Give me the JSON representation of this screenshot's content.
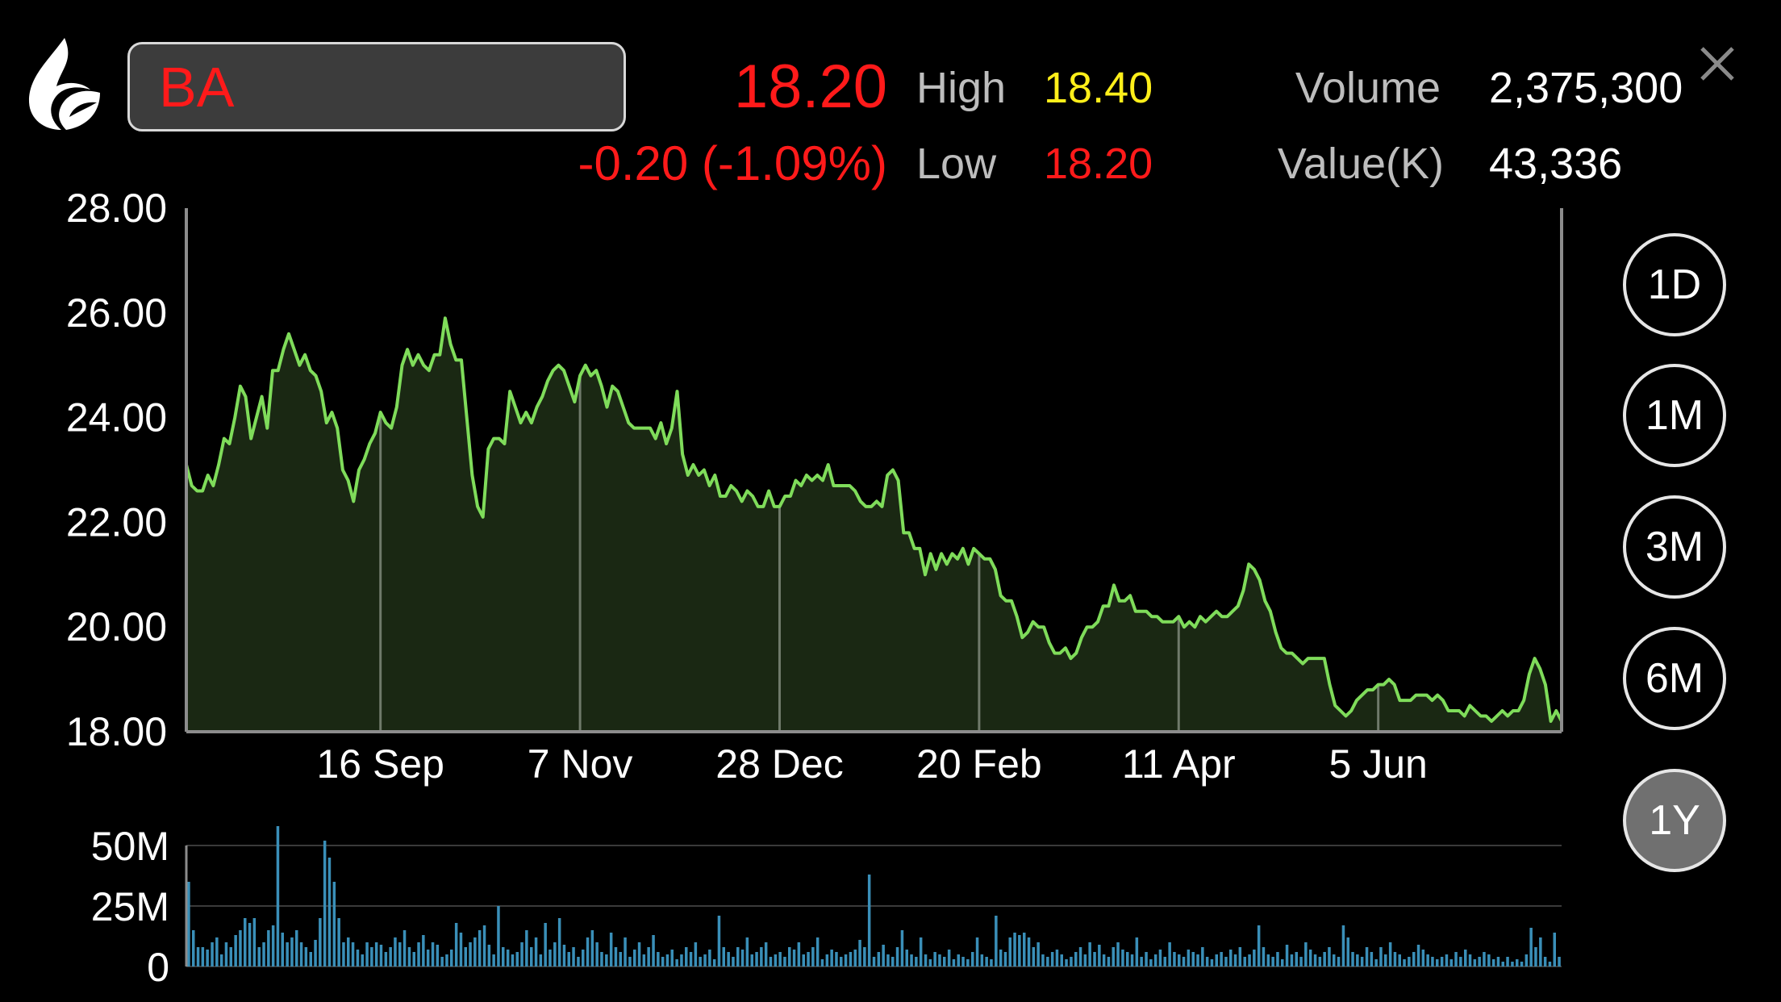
{
  "header": {
    "symbol": "BA",
    "last_price": "18.20",
    "change": "-0.20 (-1.09%)",
    "high_label": "High",
    "high_value": "18.40",
    "low_label": "Low",
    "low_value": "18.20",
    "volume_label": "Volume",
    "volume_value": "2,375,300",
    "value_label": "Value(K)",
    "value_value": "43,336"
  },
  "icons": {
    "logo": "flame-logo-icon",
    "close": "close-icon"
  },
  "colors": {
    "price_down": "#ff1a1a",
    "high": "#ffef1a",
    "line": "#7fdc5a",
    "volume_bar": "#3a8fb8"
  },
  "range_buttons": [
    {
      "label": "1D",
      "active": false
    },
    {
      "label": "1M",
      "active": false
    },
    {
      "label": "3M",
      "active": false
    },
    {
      "label": "6M",
      "active": false
    },
    {
      "label": "1Y",
      "active": true
    }
  ],
  "chart_data": [
    {
      "type": "area",
      "ylim": [
        18,
        28
      ],
      "y_ticks": [
        "28.00",
        "26.00",
        "24.00",
        "22.00",
        "20.00",
        "18.00"
      ],
      "x_tick_labels": [
        "16 Sep",
        "7 Nov",
        "28 Dec",
        "20 Feb",
        "11 Apr",
        "5 Jun"
      ],
      "x_tick_index": [
        36,
        73,
        110,
        147,
        184,
        221
      ],
      "grid": "vertical lines at date ticks",
      "values": [
        23.1,
        22.7,
        22.6,
        22.6,
        22.9,
        22.7,
        23.1,
        23.6,
        23.5,
        24.0,
        24.6,
        24.4,
        23.6,
        24.0,
        24.4,
        23.8,
        24.9,
        24.9,
        25.3,
        25.6,
        25.3,
        25.0,
        25.2,
        24.9,
        24.8,
        24.5,
        23.9,
        24.1,
        23.8,
        23.0,
        22.8,
        22.4,
        23.0,
        23.2,
        23.5,
        23.7,
        24.1,
        23.9,
        23.8,
        24.2,
        25.0,
        25.3,
        25.0,
        25.2,
        25.0,
        24.9,
        25.2,
        25.2,
        25.9,
        25.4,
        25.1,
        25.1,
        24.0,
        22.9,
        22.3,
        22.1,
        23.4,
        23.6,
        23.6,
        23.5,
        24.5,
        24.2,
        23.9,
        24.1,
        23.9,
        24.2,
        24.4,
        24.7,
        24.9,
        25.0,
        24.9,
        24.6,
        24.3,
        24.8,
        25.0,
        24.8,
        24.9,
        24.6,
        24.2,
        24.6,
        24.5,
        24.2,
        23.9,
        23.8,
        23.8,
        23.8,
        23.8,
        23.6,
        23.9,
        23.5,
        23.8,
        24.5,
        23.3,
        22.9,
        23.1,
        22.9,
        23.0,
        22.7,
        22.9,
        22.5,
        22.5,
        22.7,
        22.6,
        22.4,
        22.6,
        22.5,
        22.3,
        22.3,
        22.6,
        22.3,
        22.3,
        22.5,
        22.5,
        22.8,
        22.7,
        22.9,
        22.8,
        22.9,
        22.8,
        23.1,
        22.7,
        22.7,
        22.7,
        22.7,
        22.6,
        22.4,
        22.3,
        22.3,
        22.4,
        22.3,
        22.9,
        23.0,
        22.8,
        21.8,
        21.8,
        21.5,
        21.5,
        21.0,
        21.4,
        21.1,
        21.4,
        21.2,
        21.4,
        21.3,
        21.5,
        21.2,
        21.5,
        21.4,
        21.3,
        21.3,
        21.1,
        20.6,
        20.5,
        20.5,
        20.2,
        19.8,
        19.9,
        20.1,
        20.0,
        20.0,
        19.7,
        19.5,
        19.5,
        19.6,
        19.4,
        19.5,
        19.8,
        20.0,
        20.0,
        20.1,
        20.4,
        20.4,
        20.8,
        20.5,
        20.5,
        20.6,
        20.3,
        20.3,
        20.3,
        20.2,
        20.2,
        20.1,
        20.1,
        20.1,
        20.2,
        20.0,
        20.1,
        20.0,
        20.2,
        20.1,
        20.2,
        20.3,
        20.2,
        20.2,
        20.3,
        20.4,
        20.7,
        21.2,
        21.1,
        20.9,
        20.5,
        20.3,
        19.9,
        19.6,
        19.5,
        19.5,
        19.4,
        19.3,
        19.4,
        19.4,
        19.4,
        19.4,
        18.9,
        18.5,
        18.4,
        18.3,
        18.4,
        18.6,
        18.7,
        18.8,
        18.8,
        18.9,
        18.9,
        19.0,
        18.9,
        18.6,
        18.6,
        18.6,
        18.7,
        18.7,
        18.7,
        18.6,
        18.7,
        18.6,
        18.4,
        18.4,
        18.4,
        18.3,
        18.5,
        18.4,
        18.3,
        18.3,
        18.2,
        18.3,
        18.4,
        18.3,
        18.4,
        18.4,
        18.6,
        19.1,
        19.4,
        19.2,
        18.9,
        18.2,
        18.4,
        18.2
      ]
    },
    {
      "type": "bar",
      "ylim": [
        0,
        60
      ],
      "y_ticks": [
        "50M",
        "25M",
        "0"
      ],
      "ylabel_unit": "M",
      "values": [
        35,
        15,
        8,
        8,
        7,
        10,
        12,
        5,
        10,
        8,
        13,
        15,
        20,
        18,
        20,
        8,
        10,
        15,
        17,
        58,
        14,
        10,
        12,
        15,
        10,
        8,
        6,
        11,
        20,
        52,
        45,
        35,
        20,
        10,
        12,
        10,
        7,
        5,
        10,
        8,
        10,
        9,
        6,
        8,
        12,
        10,
        15,
        8,
        6,
        10,
        13,
        7,
        10,
        9,
        4,
        5,
        7,
        18,
        14,
        8,
        10,
        12,
        15,
        17,
        9,
        5,
        25,
        8,
        7,
        5,
        6,
        10,
        15,
        8,
        12,
        5,
        18,
        7,
        10,
        20,
        9,
        6,
        8,
        4,
        7,
        12,
        15,
        10,
        6,
        5,
        14,
        8,
        6,
        12,
        4,
        7,
        10,
        5,
        8,
        13,
        6,
        4,
        5,
        7,
        3,
        5,
        8,
        6,
        10,
        4,
        5,
        7,
        3,
        21,
        8,
        6,
        4,
        8,
        7,
        12,
        5,
        6,
        8,
        10,
        4,
        5,
        6,
        4,
        8,
        7,
        10,
        5,
        6,
        8,
        12,
        3,
        5,
        7,
        6,
        4,
        5,
        6,
        7,
        11,
        8,
        38,
        4,
        6,
        9,
        5,
        4,
        8,
        15,
        7,
        5,
        4,
        12,
        5,
        3,
        6,
        5,
        4,
        7,
        3,
        5,
        4,
        3,
        6,
        12,
        5,
        4,
        3,
        21,
        7,
        6,
        12,
        14,
        13,
        14,
        12,
        8,
        10,
        5,
        4,
        6,
        7,
        5,
        3,
        4,
        6,
        8,
        5,
        10,
        6,
        9,
        5,
        4,
        8,
        10,
        7,
        6,
        5,
        12,
        4,
        6,
        3,
        5,
        7,
        4,
        10,
        6,
        5,
        4,
        7,
        6,
        5,
        8,
        4,
        3,
        5,
        6,
        4,
        7,
        5,
        8,
        4,
        5,
        7,
        17,
        8,
        5,
        4,
        6,
        3,
        9,
        5,
        6,
        4,
        10,
        7,
        5,
        4,
        6,
        8,
        5,
        4,
        17,
        12,
        6,
        5,
        4,
        8,
        6,
        3,
        8,
        5,
        10,
        6,
        5,
        3,
        4,
        6,
        9,
        7,
        5,
        4,
        3,
        4,
        5,
        3,
        6,
        4,
        7,
        5,
        3,
        4,
        6,
        5,
        3,
        4,
        2,
        4,
        2,
        3,
        2,
        5,
        16,
        8,
        12,
        4,
        2,
        14,
        4
      ]
    }
  ]
}
